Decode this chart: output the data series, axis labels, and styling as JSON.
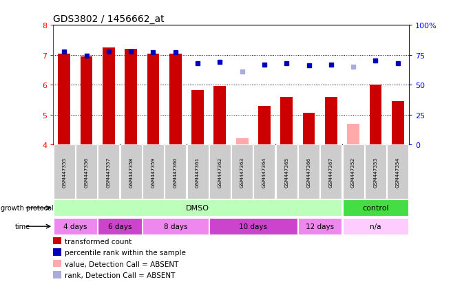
{
  "title": "GDS3802 / 1456662_at",
  "samples": [
    "GSM447355",
    "GSM447356",
    "GSM447357",
    "GSM447358",
    "GSM447359",
    "GSM447360",
    "GSM447361",
    "GSM447362",
    "GSM447363",
    "GSM447364",
    "GSM447365",
    "GSM447366",
    "GSM447367",
    "GSM447352",
    "GSM447353",
    "GSM447354"
  ],
  "bar_values": [
    7.05,
    6.95,
    7.25,
    7.2,
    7.05,
    7.05,
    5.82,
    5.95,
    4.2,
    5.3,
    5.6,
    5.05,
    5.6,
    4.7,
    6.0,
    5.45
  ],
  "bar_absent": [
    false,
    false,
    false,
    false,
    false,
    false,
    false,
    false,
    true,
    false,
    false,
    false,
    false,
    true,
    false,
    false
  ],
  "percentile_values": [
    78,
    74,
    78,
    78,
    77,
    77,
    68,
    69,
    61,
    67,
    68,
    66,
    67,
    65,
    70,
    68
  ],
  "percentile_absent": [
    false,
    false,
    false,
    false,
    false,
    false,
    false,
    false,
    true,
    false,
    false,
    false,
    false,
    true,
    false,
    false
  ],
  "ylim_left": [
    4.0,
    8.0
  ],
  "ylim_right": [
    0,
    100
  ],
  "yticks_left": [
    4,
    5,
    6,
    7,
    8
  ],
  "yticks_right": [
    0,
    25,
    50,
    75,
    100
  ],
  "ytick_labels_right": [
    "0",
    "25",
    "50",
    "75",
    "100%"
  ],
  "bar_color_normal": "#cc0000",
  "bar_color_absent": "#ffaaaa",
  "dot_color_normal": "#0000bb",
  "dot_color_absent": "#aaaadd",
  "protocol_groups": [
    {
      "label": "DMSO",
      "start": 0,
      "end": 13,
      "color": "#bbffbb"
    },
    {
      "label": "control",
      "start": 13,
      "end": 16,
      "color": "#44dd44"
    }
  ],
  "time_groups": [
    {
      "label": "4 days",
      "start": 0,
      "end": 2,
      "color": "#ee88ee"
    },
    {
      "label": "6 days",
      "start": 2,
      "end": 4,
      "color": "#cc44cc"
    },
    {
      "label": "8 days",
      "start": 4,
      "end": 7,
      "color": "#ee88ee"
    },
    {
      "label": "10 days",
      "start": 7,
      "end": 11,
      "color": "#cc44cc"
    },
    {
      "label": "12 days",
      "start": 11,
      "end": 13,
      "color": "#ee88ee"
    },
    {
      "label": "n/a",
      "start": 13,
      "end": 16,
      "color": "#ffccff"
    }
  ],
  "legend_items": [
    {
      "color": "#cc0000",
      "label": "transformed count",
      "marker": "s"
    },
    {
      "color": "#0000bb",
      "label": "percentile rank within the sample",
      "marker": "s"
    },
    {
      "color": "#ffaaaa",
      "label": "value, Detection Call = ABSENT",
      "marker": "s"
    },
    {
      "color": "#aaaadd",
      "label": "rank, Detection Call = ABSENT",
      "marker": "s"
    }
  ],
  "growth_protocol_label": "growth protocol",
  "time_label": "time"
}
